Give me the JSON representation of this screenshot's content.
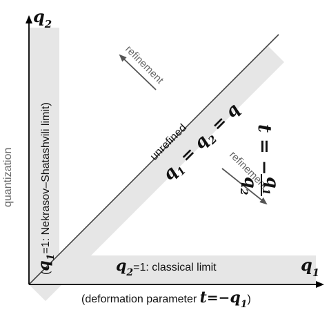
{
  "colors": {
    "band": "#e6e6e6",
    "axis": "#000000",
    "diagonal": "#444444",
    "arrow": "#555555",
    "muted_text": "#666666",
    "text": "#111111"
  },
  "axes": {
    "y_label_main": "q",
    "y_label_sub": "2",
    "x_label_main": "q",
    "x_label_sub": "1"
  },
  "labels": {
    "quantization": "quantization",
    "deformation": {
      "prefix": "(deformation parameter ",
      "t": "t",
      "eq": "=−",
      "q": "q",
      "sub": "1",
      "suffix": ")"
    },
    "ns_limit": {
      "open": "(",
      "q": "q",
      "sub": "1",
      "rest": "=1: Nekrasov–Shatashvili limit)"
    },
    "classical_limit": {
      "q": "q",
      "sub": "2",
      "rest": "=1: classical limit"
    },
    "unrefined": "unrefined",
    "diag_equation": {
      "q1": "q",
      "s1": "1",
      "eq1": " = ",
      "q2": "q",
      "s2": "2",
      "eq2": " = ",
      "q3": "q"
    },
    "refinement_upper": "refinement",
    "refinement_lower": "refinement",
    "t_formula": {
      "lhs": "t = −",
      "num_q": "q",
      "num_sub": "1",
      "den_q": "q",
      "den_sub": "2"
    }
  }
}
